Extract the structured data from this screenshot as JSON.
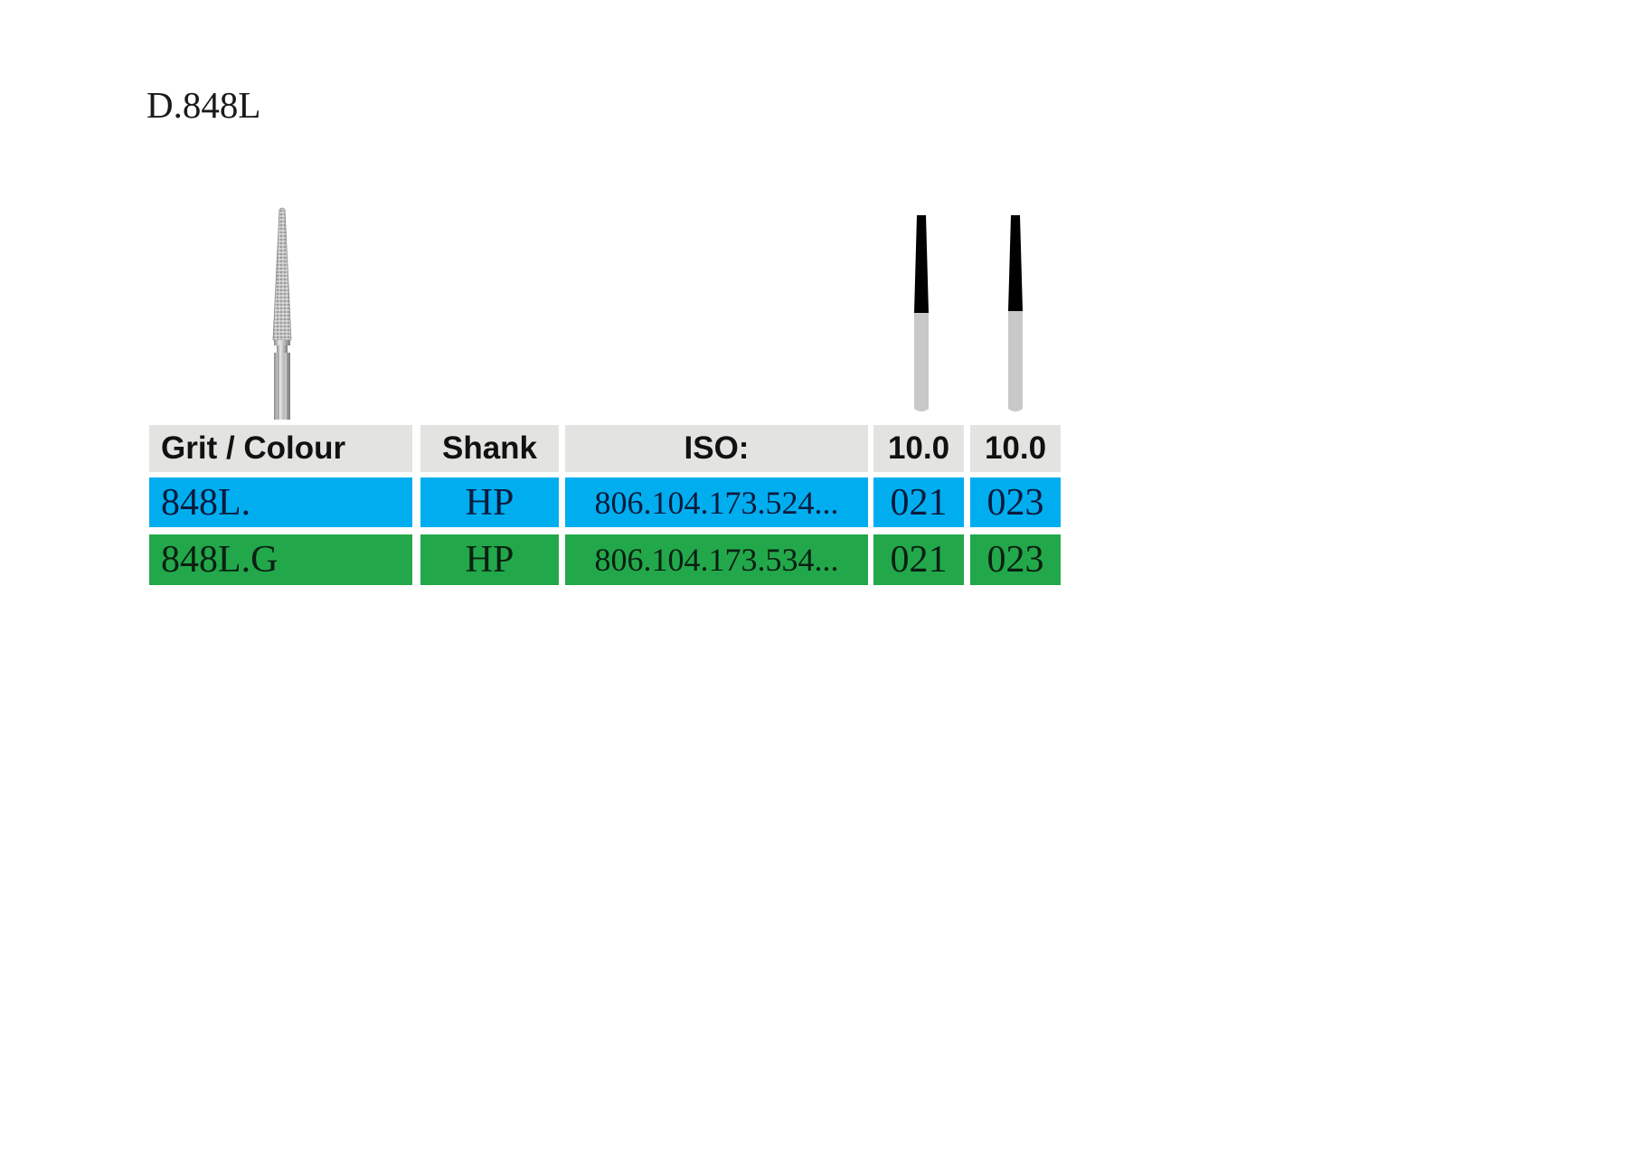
{
  "title": "D.848L",
  "table": {
    "headers": [
      "Grit / Colour",
      "Shank",
      "ISO:",
      "10.0",
      "10.0"
    ],
    "rows": [
      {
        "grit": "848L.",
        "shank": "HP",
        "iso": "806.104.173.524...",
        "size_a": "021",
        "size_b": "023",
        "color": "#00aeef"
      },
      {
        "grit": "848L.G",
        "shank": "HP",
        "iso": "806.104.173.534...",
        "size_a": "021",
        "size_b": "023",
        "color": "#22a84a"
      }
    ]
  },
  "icons": {
    "bur_image": "diamond-bur-tapered-icon",
    "diagram_1": "bur-silhouette-icon",
    "diagram_2": "bur-silhouette-icon"
  }
}
